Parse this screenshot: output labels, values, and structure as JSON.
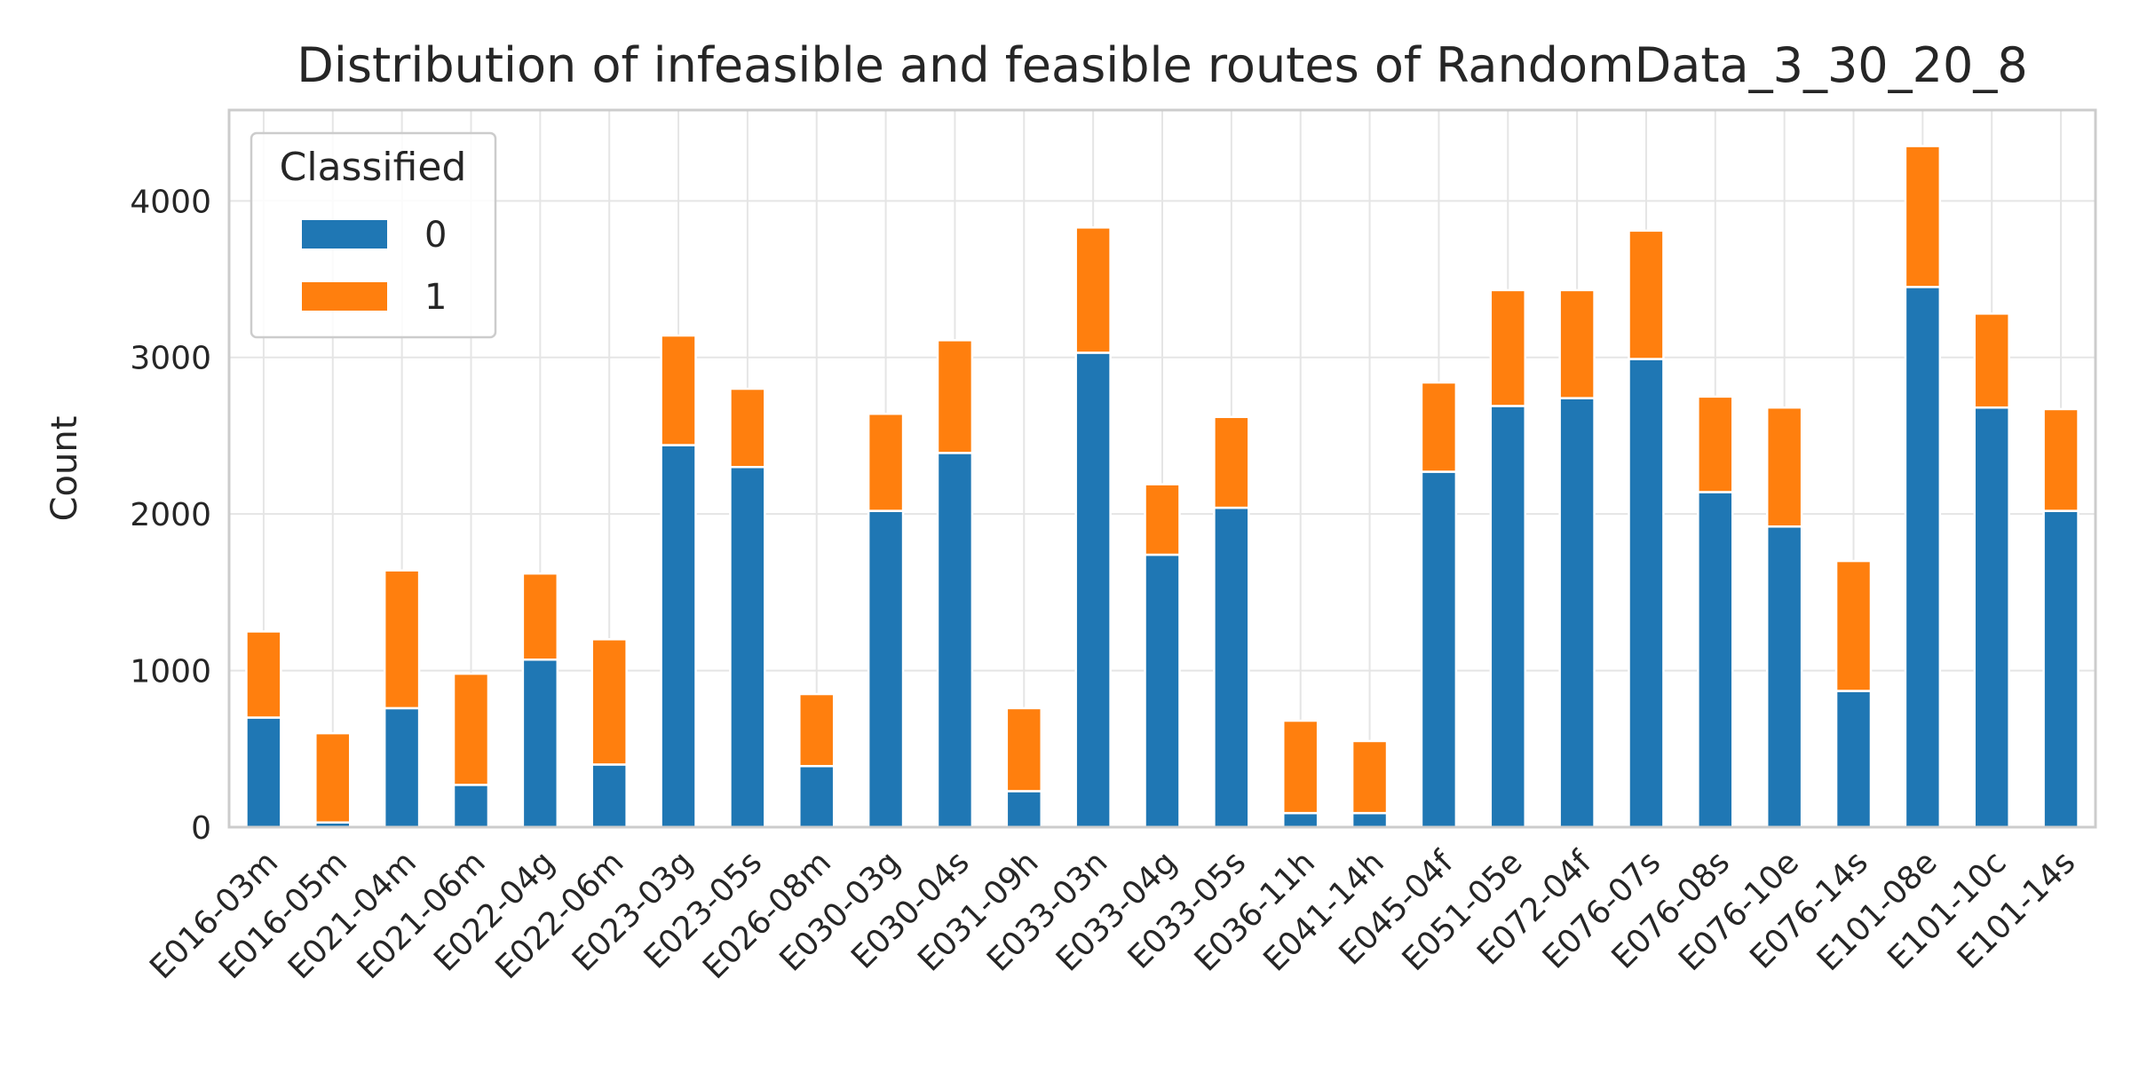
{
  "chart_data": {
    "type": "bar",
    "stacked": true,
    "title": "Distribution of infeasible and feasible routes of RandomData_3_30_20_8",
    "xlabel": "",
    "ylabel": "Count",
    "ylim": [
      0,
      4580
    ],
    "yticks": [
      "0",
      "1000",
      "2000",
      "3000",
      "4000"
    ],
    "ytick_values": [
      0,
      1000,
      2000,
      3000,
      4000
    ],
    "grid": true,
    "legend": {
      "title": "Classified",
      "placement": "top-left"
    },
    "colors": {
      "0": "#1f77b4",
      "1": "#ff7f0e",
      "grid": "#e5e5e5",
      "frame": "#cccccc"
    },
    "categories": [
      "E016-03m",
      "E016-05m",
      "E021-04m",
      "E021-06m",
      "E022-04g",
      "E022-06m",
      "E023-03g",
      "E023-05s",
      "E026-08m",
      "E030-03g",
      "E030-04s",
      "E031-09h",
      "E033-03n",
      "E033-04g",
      "E033-05s",
      "E036-11h",
      "E041-14h",
      "E045-04f",
      "E051-05e",
      "E072-04f",
      "E076-07s",
      "E076-08s",
      "E076-10e",
      "E076-14s",
      "E101-08e",
      "E101-10c",
      "E101-14s"
    ],
    "series": [
      {
        "name": "0",
        "values": [
          700,
          30,
          760,
          270,
          1070,
          400,
          2440,
          2300,
          390,
          2020,
          2390,
          230,
          3030,
          1740,
          2040,
          90,
          90,
          2270,
          2690,
          2740,
          2990,
          2140,
          1920,
          870,
          3450,
          2680,
          2020
        ]
      },
      {
        "name": "1",
        "values": [
          550,
          570,
          880,
          710,
          550,
          800,
          700,
          500,
          460,
          620,
          720,
          530,
          800,
          450,
          580,
          590,
          460,
          570,
          740,
          690,
          820,
          610,
          760,
          830,
          900,
          600,
          650
        ]
      }
    ]
  }
}
